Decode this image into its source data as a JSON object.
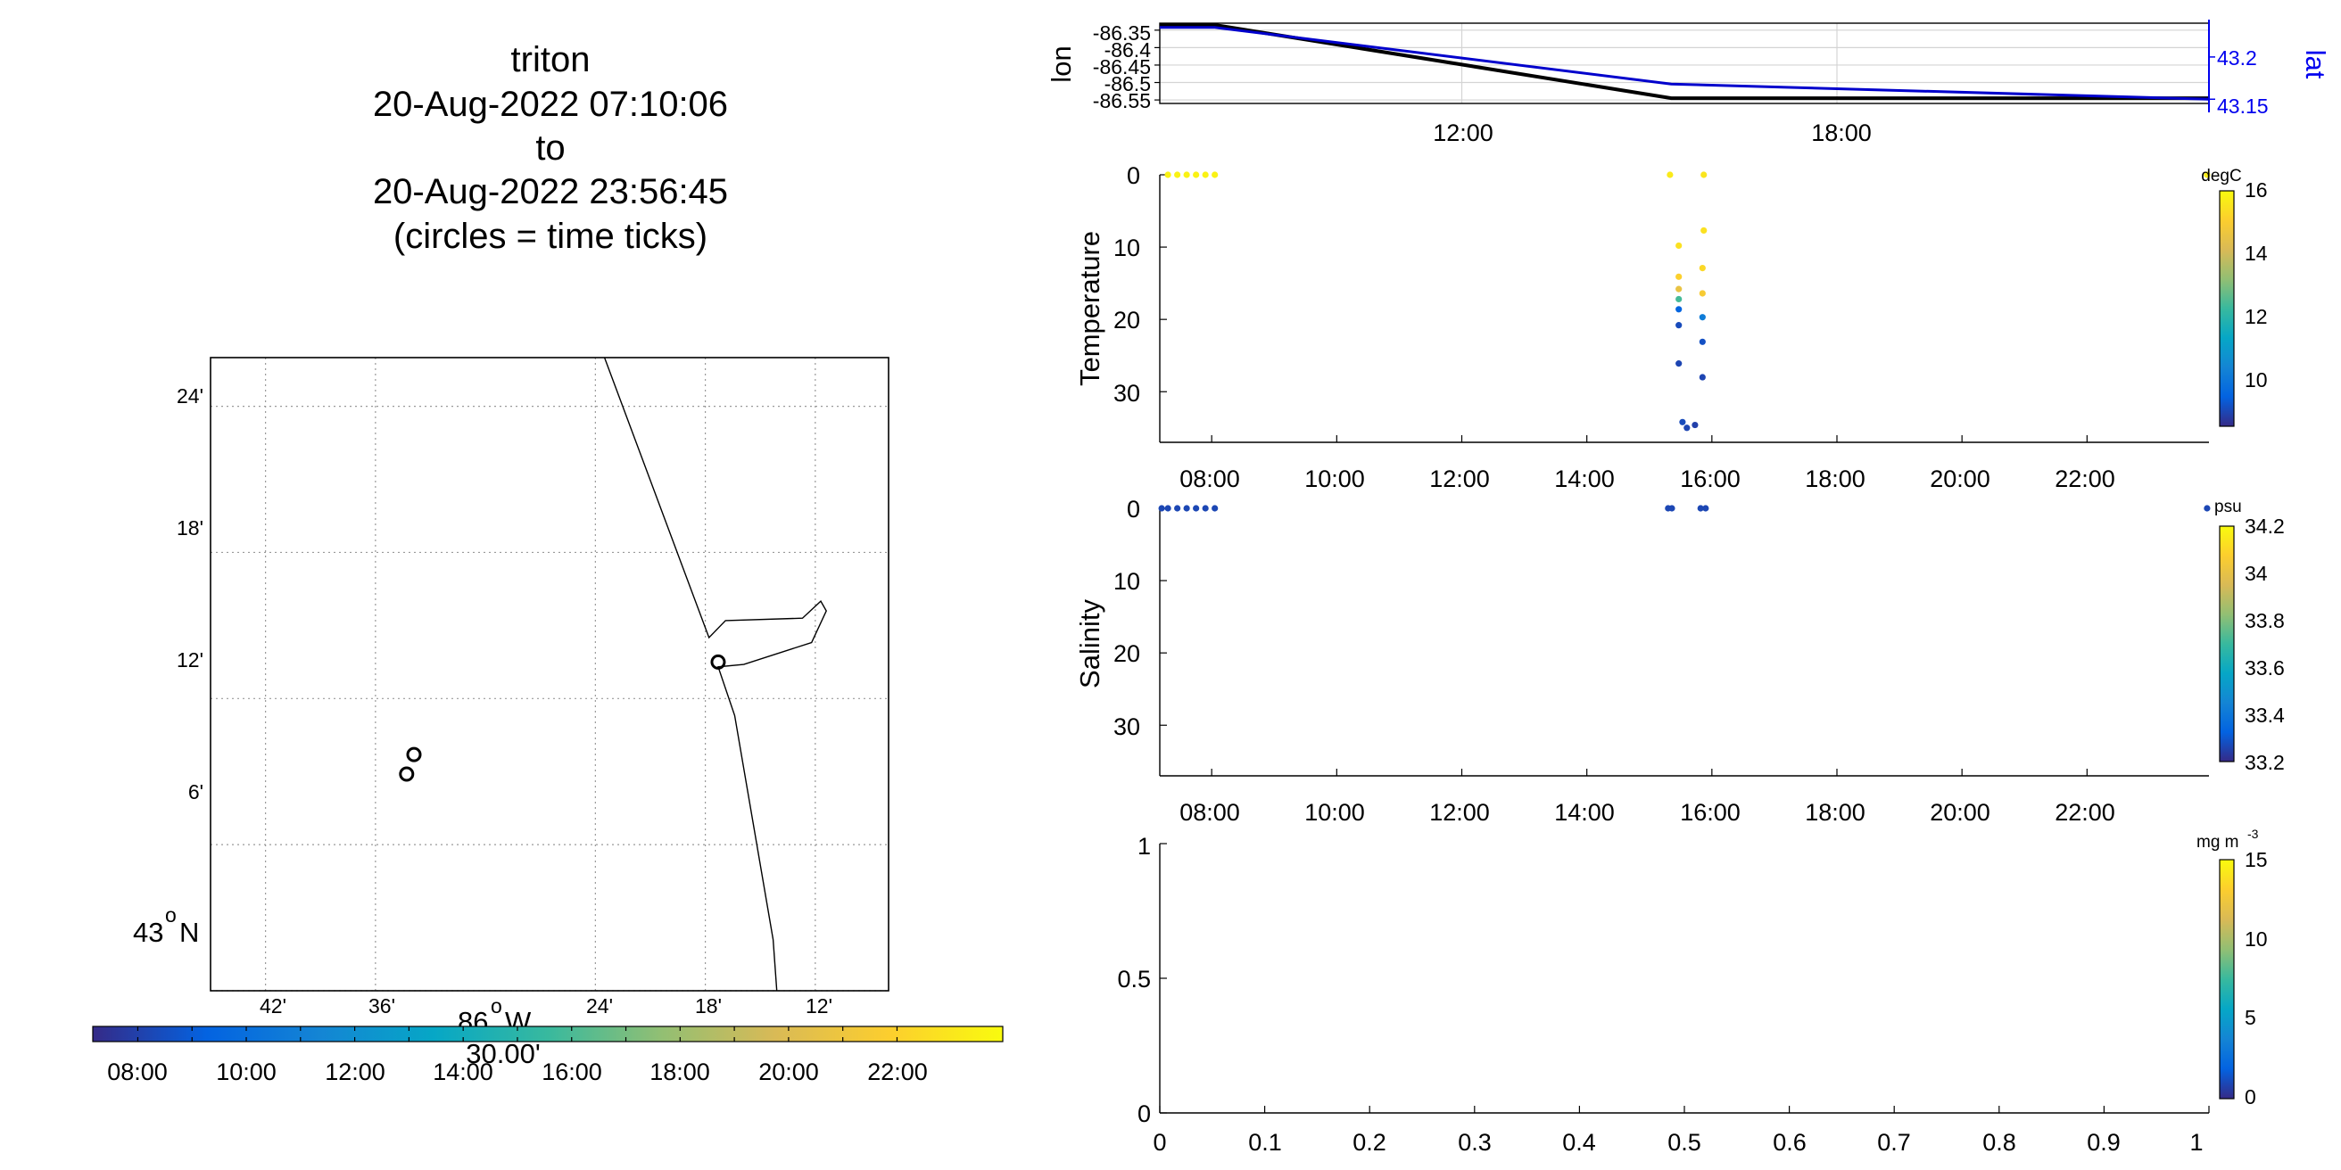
{
  "title": {
    "lines": [
      "triton",
      "20-Aug-2022 07:10:06",
      "to",
      "20-Aug-2022 23:56:45",
      "(circles = time ticks)"
    ]
  },
  "colors": {
    "track_lon": "#000000",
    "track_lat": "#0000cc",
    "parula": [
      "#352a87",
      "#0363e1",
      "#1485d4",
      "#06a7c6",
      "#38b99e",
      "#92bf73",
      "#d9ba56",
      "#fcce2e",
      "#f9fb0e"
    ]
  },
  "chart_data": [
    {
      "id": "map",
      "type": "scatter",
      "title": "",
      "lat_ticks": [
        "24'",
        "18'",
        "12'",
        "6'"
      ],
      "lat_label_main": "43",
      "lat_label_deg": "o",
      "lat_label_suffix": "N",
      "lon_ticks": [
        "42'",
        "36'",
        "24'",
        "18'",
        "12'"
      ],
      "lon_label_main": "86",
      "lon_label_deg": "o",
      "lon_label_suffix": "W",
      "lon_label_sub": "30.00'",
      "xlim_min": [
        45,
        8
      ],
      "ylim_min": [
        0,
        26
      ],
      "grid": true,
      "points_min": [
        [
          33.9,
          9.7
        ],
        [
          34.3,
          8.9
        ],
        [
          17.3,
          13.5
        ]
      ],
      "coastline_min": [
        [
          23.5,
          26
        ],
        [
          17.8,
          14.5
        ],
        [
          16.9,
          15.2
        ],
        [
          12.7,
          15.3
        ],
        [
          11.7,
          16.0
        ],
        [
          11.4,
          15.6
        ],
        [
          12.2,
          14.3
        ],
        [
          15.9,
          13.4
        ],
        [
          17.3,
          13.3
        ],
        [
          16.4,
          11.3
        ],
        [
          14.3,
          2.1
        ],
        [
          14.1,
          0
        ]
      ]
    },
    {
      "id": "time-colorbar",
      "type": "colorbar",
      "ticks": [
        "08:00",
        "10:00",
        "12:00",
        "14:00",
        "16:00",
        "18:00",
        "20:00",
        "22:00"
      ],
      "range_hours": [
        7.17,
        23.95
      ]
    },
    {
      "id": "lonlat",
      "type": "line",
      "ylabel": "lon",
      "y2label": "lat",
      "xticks": [
        "12:00",
        "18:00"
      ],
      "xlim_hours": [
        7.17,
        23.95
      ],
      "ylim": [
        -86.56,
        -86.33
      ],
      "yticks": [
        "-86.35",
        "-86.4",
        "-86.45",
        "-86.5",
        "-86.55"
      ],
      "y2lim": [
        43.145,
        43.24
      ],
      "y2ticks": [
        "43.2",
        "43.15"
      ],
      "grid": true,
      "series": [
        {
          "x_hours": [
            7.17,
            8.05,
            15.35,
            23.95
          ],
          "values": [
            -86.335,
            -86.335,
            -86.545,
            -86.545
          ]
        },
        {
          "x_hours": [
            7.17,
            8.05,
            15.35,
            23.95
          ],
          "values": [
            43.235,
            43.235,
            43.168,
            43.15
          ]
        }
      ]
    },
    {
      "id": "temperature",
      "type": "scatter",
      "ylabel": "Temperature",
      "cbar_unit": "degC",
      "cbar_ticks": [
        "16",
        "14",
        "12",
        "10"
      ],
      "clim": [
        8.5,
        16.8
      ],
      "xticks": [
        "08:00",
        "10:00",
        "12:00",
        "14:00",
        "16:00",
        "18:00",
        "20:00",
        "22:00"
      ],
      "yticks": [
        "0",
        "10",
        "20",
        "30"
      ],
      "xlim_hours": [
        7.17,
        23.95
      ],
      "ylim": [
        0,
        37
      ],
      "points": [
        [
          7.3,
          0,
          16.6
        ],
        [
          7.45,
          0,
          16.6
        ],
        [
          7.6,
          0,
          16.6
        ],
        [
          7.75,
          0,
          16.6
        ],
        [
          7.9,
          0,
          16.6
        ],
        [
          8.05,
          0,
          16.6
        ],
        [
          15.33,
          0,
          16.4
        ],
        [
          15.47,
          9.8,
          16.2
        ],
        [
          15.47,
          14.1,
          15.8
        ],
        [
          15.47,
          15.8,
          15.2
        ],
        [
          15.47,
          17.2,
          12.8
        ],
        [
          15.47,
          18.6,
          9.6
        ],
        [
          15.47,
          20.8,
          9.1
        ],
        [
          15.47,
          26.1,
          9.0
        ],
        [
          15.53,
          34.2,
          9.1
        ],
        [
          15.6,
          35.0,
          9.0
        ],
        [
          15.73,
          34.6,
          8.9
        ],
        [
          15.87,
          0,
          16.3
        ],
        [
          15.87,
          7.7,
          16.2
        ],
        [
          15.85,
          12.9,
          16.0
        ],
        [
          15.85,
          16.4,
          15.6
        ],
        [
          15.85,
          19.7,
          10.3
        ],
        [
          15.85,
          23.1,
          9.2
        ],
        [
          15.85,
          28.0,
          9.0
        ],
        [
          23.92,
          0,
          16.5
        ]
      ]
    },
    {
      "id": "salinity",
      "type": "scatter",
      "ylabel": "Salinity",
      "cbar_unit": "psu",
      "cbar_ticks": [
        "34.2",
        "34",
        "33.8",
        "33.6",
        "33.4",
        "33.2"
      ],
      "clim": [
        33.18,
        34.3
      ],
      "xticks": [
        "08:00",
        "10:00",
        "12:00",
        "14:00",
        "16:00",
        "18:00",
        "20:00",
        "22:00"
      ],
      "yticks": [
        "0",
        "10",
        "20",
        "30"
      ],
      "xlim_hours": [
        7.17,
        23.95
      ],
      "ylim": [
        0,
        37
      ],
      "points": [
        [
          7.2,
          0,
          33.25
        ],
        [
          7.3,
          0,
          33.25
        ],
        [
          7.45,
          0,
          33.25
        ],
        [
          7.6,
          0,
          33.25
        ],
        [
          7.75,
          0,
          33.25
        ],
        [
          7.9,
          0,
          33.25
        ],
        [
          8.05,
          0,
          33.25
        ],
        [
          15.3,
          0,
          33.25
        ],
        [
          15.36,
          0,
          33.25
        ],
        [
          15.82,
          0,
          33.25
        ],
        [
          15.9,
          0,
          33.25
        ],
        [
          23.92,
          0,
          33.25
        ]
      ]
    },
    {
      "id": "empty-panel",
      "type": "scatter",
      "xticks": [
        "0",
        "0.1",
        "0.2",
        "0.3",
        "0.4",
        "0.5",
        "0.6",
        "0.7",
        "0.8",
        "0.9",
        "1"
      ],
      "yticks": [
        "1",
        "0.5",
        "0"
      ],
      "xlim": [
        0,
        1
      ],
      "ylim": [
        0,
        1
      ],
      "cbar_unit_main": "mg m",
      "cbar_unit_sup": "-3",
      "cbar_ticks": [
        "15",
        "10",
        "5",
        "0"
      ],
      "clim": [
        0,
        15
      ],
      "points": []
    }
  ]
}
